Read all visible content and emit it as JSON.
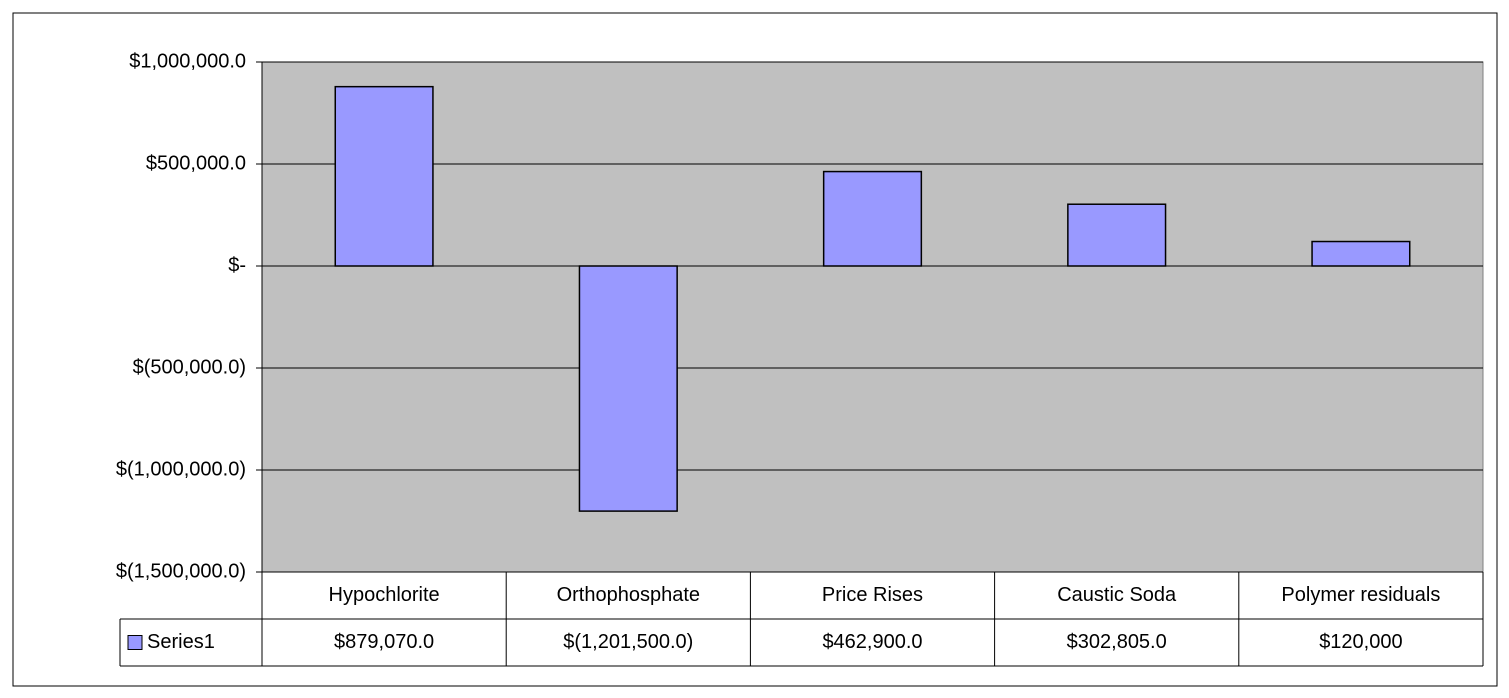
{
  "chart_data": {
    "type": "bar",
    "categories": [
      "Hypochlorite",
      "Orthophosphate",
      "Price Rises",
      "Caustic Soda",
      "Polymer residuals"
    ],
    "series": [
      {
        "name": "Series1",
        "color": "#9999ff",
        "values": [
          879070,
          -1201500,
          462900,
          302805,
          120000
        ],
        "value_labels": [
          "$879,070.0",
          "$(1,201,500.0)",
          "$462,900.0",
          "$302,805.0",
          "$120,000"
        ]
      }
    ],
    "ylim": [
      -1500000,
      1000000
    ],
    "yticks": [
      {
        "value": -1500000,
        "label": "$(1,500,000.0)"
      },
      {
        "value": -1000000,
        "label": "$(1,000,000.0)"
      },
      {
        "value": -500000,
        "label": "$(500,000.0)"
      },
      {
        "value": 0,
        "label": "$-"
      },
      {
        "value": 500000,
        "label": "$500,000.0"
      },
      {
        "value": 1000000,
        "label": "$1,000,000.0"
      }
    ],
    "grid": true
  }
}
